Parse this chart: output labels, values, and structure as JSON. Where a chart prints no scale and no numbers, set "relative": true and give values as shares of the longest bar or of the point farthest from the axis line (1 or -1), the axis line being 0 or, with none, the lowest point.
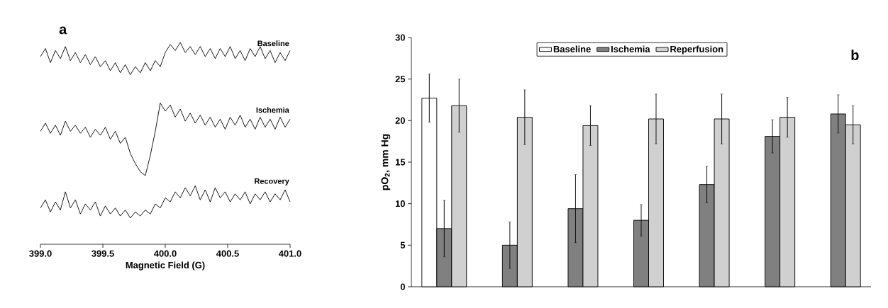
{
  "chart_data": [
    {
      "type": "line",
      "relative": true,
      "tick_labels": "x",
      "xlabel": "Magnetic Field (G)",
      "annotations": [
        "a"
      ],
      "xlim": [
        399,
        401
      ],
      "xticks": [
        {
          "value": 399,
          "label": "399.0"
        },
        399.5,
        {
          "value": 400,
          "label": "400.0"
        },
        400.5,
        {
          "value": 401,
          "label": "401.0"
        }
      ],
      "x": [
        399,
        399.04,
        399.08,
        399.12,
        399.16,
        399.2,
        399.24,
        399.28,
        399.32,
        399.36,
        399.4,
        399.44,
        399.48,
        399.52,
        399.56,
        399.6,
        399.64,
        399.68,
        399.72,
        399.76,
        399.8,
        399.84,
        399.88,
        399.92,
        399.96,
        400,
        400.04,
        400.08,
        400.12,
        400.16,
        400.2,
        400.24,
        400.28,
        400.32,
        400.36,
        400.4,
        400.44,
        400.48,
        400.52,
        400.56,
        400.6,
        400.64,
        400.68,
        400.72,
        400.76,
        400.8,
        400.84,
        400.88,
        400.92,
        400.96,
        401
      ],
      "series": [
        {
          "name": "Baseline",
          "color": "#000000",
          "values": [
            0.93,
            0.97,
            0.9,
            0.96,
            0.92,
            0.98,
            0.91,
            0.95,
            0.9,
            0.94,
            0.89,
            0.93,
            0.88,
            0.91,
            0.86,
            0.9,
            0.85,
            0.89,
            0.84,
            0.88,
            0.85,
            0.9,
            0.86,
            0.91,
            0.88,
            0.95,
            0.99,
            0.96,
            1.0,
            0.95,
            0.98,
            0.94,
            0.98,
            0.93,
            0.97,
            0.92,
            0.97,
            0.93,
            0.98,
            0.92,
            0.96,
            0.91,
            0.97,
            0.93,
            0.98,
            0.92,
            0.96,
            0.9,
            0.95,
            0.91,
            0.96
          ]
        },
        {
          "name": "Ischemia",
          "color": "#000000",
          "values": [
            0.56,
            0.6,
            0.55,
            0.59,
            0.54,
            0.61,
            0.56,
            0.59,
            0.55,
            0.58,
            0.53,
            0.57,
            0.54,
            0.58,
            0.52,
            0.56,
            0.5,
            0.53,
            0.45,
            0.4,
            0.36,
            0.34,
            0.44,
            0.56,
            0.7,
            0.66,
            0.69,
            0.63,
            0.67,
            0.61,
            0.65,
            0.6,
            0.64,
            0.59,
            0.63,
            0.58,
            0.62,
            0.57,
            0.63,
            0.59,
            0.64,
            0.58,
            0.62,
            0.57,
            0.63,
            0.58,
            0.62,
            0.57,
            0.63,
            0.58,
            0.62
          ]
        },
        {
          "name": "Recovery",
          "color": "#000000",
          "values": [
            0.18,
            0.22,
            0.16,
            0.21,
            0.17,
            0.26,
            0.18,
            0.22,
            0.15,
            0.2,
            0.17,
            0.21,
            0.14,
            0.19,
            0.15,
            0.18,
            0.14,
            0.17,
            0.13,
            0.16,
            0.14,
            0.17,
            0.15,
            0.2,
            0.18,
            0.23,
            0.21,
            0.26,
            0.23,
            0.28,
            0.24,
            0.29,
            0.22,
            0.27,
            0.21,
            0.28,
            0.23,
            0.26,
            0.21,
            0.25,
            0.22,
            0.26,
            0.2,
            0.25,
            0.22,
            0.26,
            0.21,
            0.25,
            0.22,
            0.27,
            0.21
          ]
        }
      ]
    },
    {
      "type": "bar",
      "ylabel": "pO$_{2}$, mm Hg",
      "annotations": [
        "b"
      ],
      "legend": "top",
      "ylim": [
        0,
        30
      ],
      "yticks": [
        0,
        5,
        10,
        15,
        20,
        25,
        30
      ],
      "categories": [
        null,
        null,
        null,
        null,
        null,
        null,
        null
      ],
      "series": [
        {
          "name": "Baseline",
          "color": "#ffffff",
          "values": [
            22.7,
            null,
            null,
            null,
            null,
            null,
            null
          ],
          "errors": [
            2.9,
            null,
            null,
            null,
            null,
            null,
            null
          ]
        },
        {
          "name": "Ischemia",
          "color": "#808080",
          "values": [
            7.0,
            5.0,
            9.4,
            8.0,
            12.3,
            18.1,
            20.8
          ],
          "errors": [
            3.4,
            2.8,
            4.1,
            1.9,
            2.2,
            2.0,
            2.3
          ]
        },
        {
          "name": "Reperfusion",
          "color": "#d0d0d0",
          "values": [
            21.8,
            20.4,
            19.4,
            20.2,
            20.2,
            20.4,
            19.5
          ],
          "errors": [
            3.2,
            3.3,
            2.4,
            3.0,
            3.0,
            2.4,
            2.3
          ]
        }
      ]
    }
  ]
}
